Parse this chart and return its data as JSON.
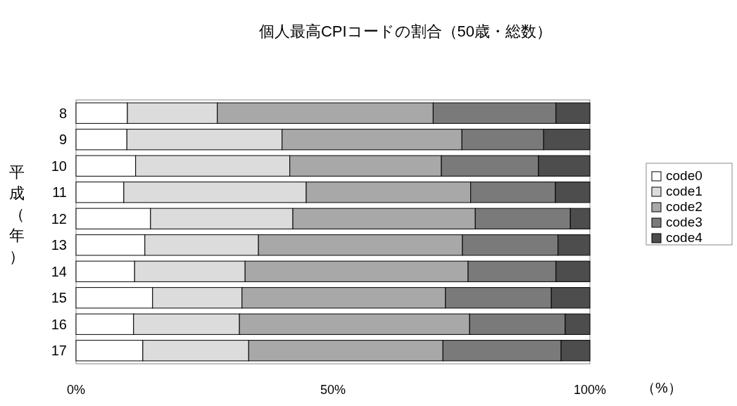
{
  "chart_data": {
    "type": "bar",
    "orientation": "horizontal",
    "stacked": true,
    "title": "個人最高CPIコードの割合（50歳・総数）",
    "ylabel": "平成（年）",
    "xlabel": "（%）",
    "categories": [
      "8",
      "9",
      "10",
      "11",
      "12",
      "13",
      "14",
      "15",
      "16",
      "17"
    ],
    "series": [
      {
        "name": "code0",
        "color": "#ffffff",
        "values": [
          10.0,
          9.9,
          11.6,
          9.3,
          14.5,
          13.4,
          11.4,
          14.9,
          11.2,
          13.0
        ]
      },
      {
        "name": "code1",
        "color": "#dcdcdc",
        "values": [
          17.5,
          30.2,
          30.0,
          35.5,
          27.7,
          22.1,
          21.5,
          17.4,
          20.6,
          20.6
        ]
      },
      {
        "name": "code2",
        "color": "#a8a8a8",
        "values": [
          42.0,
          35.0,
          29.5,
          32.0,
          35.5,
          39.7,
          43.4,
          39.6,
          44.8,
          37.8
        ]
      },
      {
        "name": "code3",
        "color": "#7a7a7a",
        "values": [
          23.9,
          15.9,
          18.9,
          16.5,
          18.5,
          18.6,
          17.1,
          20.6,
          18.6,
          23.0
        ]
      },
      {
        "name": "code4",
        "color": "#4d4d4d",
        "values": [
          6.6,
          9.0,
          10.0,
          6.7,
          3.8,
          6.2,
          6.6,
          7.5,
          4.8,
          5.6
        ]
      }
    ],
    "xlim": [
      0,
      100
    ],
    "xticks": [
      {
        "value": 0,
        "label": "0%"
      },
      {
        "value": 50,
        "label": "50%"
      },
      {
        "value": 100,
        "label": "100%"
      }
    ],
    "grid": false,
    "legend": "right"
  }
}
